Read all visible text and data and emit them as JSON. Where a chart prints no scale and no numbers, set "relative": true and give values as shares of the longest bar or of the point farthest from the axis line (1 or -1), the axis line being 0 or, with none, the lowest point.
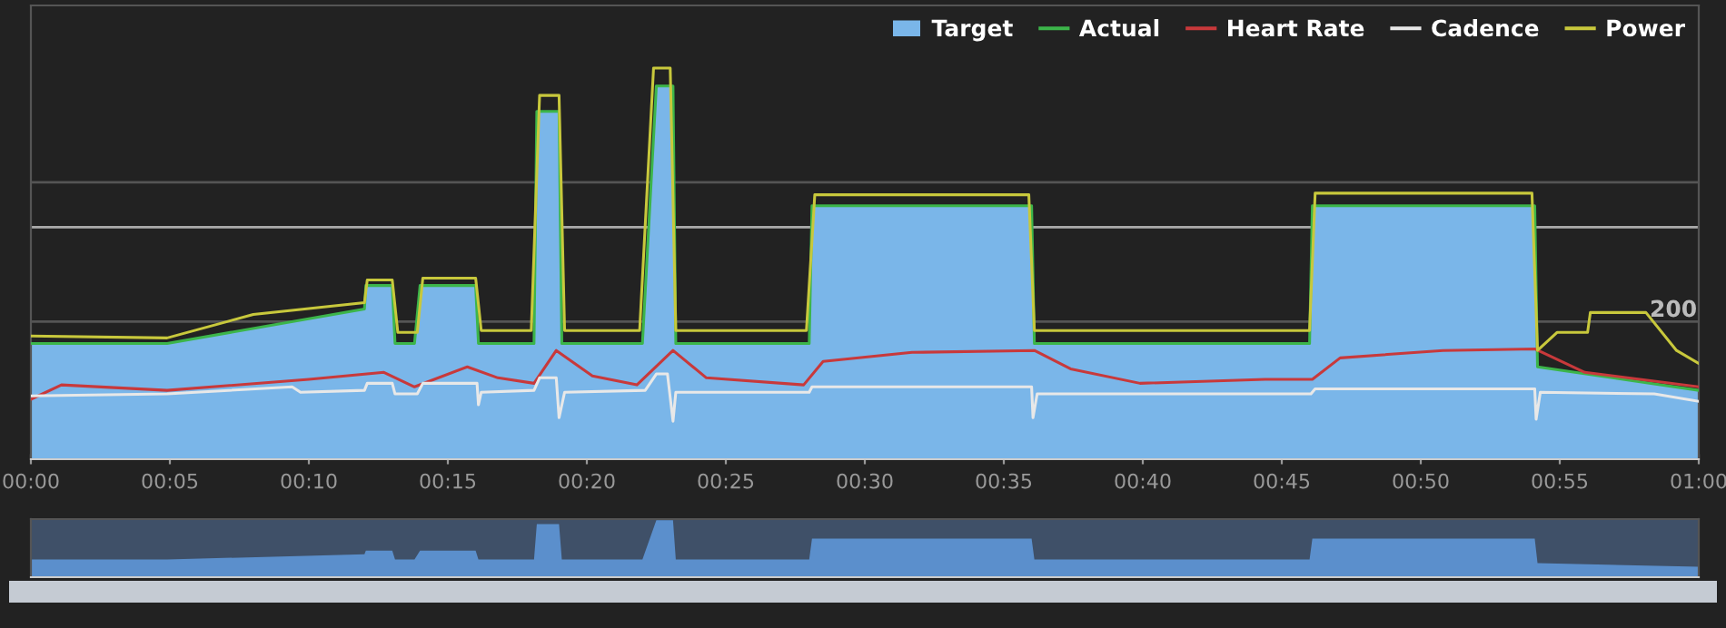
{
  "chart_data": [
    {
      "type": "line",
      "relative": true,
      "xlim": [
        0,
        60
      ],
      "xticks": [
        {
          "value": 0,
          "label": "00:00"
        },
        {
          "value": 5,
          "label": "00:05"
        },
        {
          "value": 10,
          "label": "00:10"
        },
        {
          "value": 15,
          "label": "00:15"
        },
        {
          "value": 20,
          "label": "00:20"
        },
        {
          "value": 25,
          "label": "00:25"
        },
        {
          "value": 30,
          "label": "00:30"
        },
        {
          "value": 35,
          "label": "00:35"
        },
        {
          "value": 40,
          "label": "00:40"
        },
        {
          "value": 45,
          "label": "00:45"
        },
        {
          "value": 50,
          "label": "00:50"
        },
        {
          "value": 55,
          "label": "00:55"
        },
        {
          "value": 60,
          "label": "01:00"
        }
      ],
      "legend": "top right",
      "tick_labels": "x",
      "ref_lines": [
        {
          "axis": "y",
          "value": 0.708,
          "color": "#555555"
        },
        {
          "axis": "y",
          "value": 0.593,
          "color": "#aaaaaa"
        },
        {
          "axis": "y",
          "value": 0.352,
          "color": "#555555"
        }
      ],
      "annotations": [
        "200"
      ],
      "series": [
        {
          "name": "Target",
          "type": "area",
          "color": "#7ab6e9",
          "x": [
            0,
            4.9,
            12.0,
            12.05,
            13.0,
            13.1,
            13.8,
            14.0,
            16.0,
            16.1,
            18.1,
            18.2,
            19.0,
            19.1,
            22.0,
            22.5,
            23.1,
            23.2,
            28.0,
            28.1,
            36.0,
            36.1,
            46.0,
            46.1,
            54.1,
            54.2,
            60
          ],
          "values": [
            0.296,
            0.296,
            0.384,
            0.444,
            0.444,
            0.296,
            0.296,
            0.444,
            0.444,
            0.296,
            0.296,
            0.889,
            0.889,
            0.296,
            0.296,
            0.954,
            0.954,
            0.296,
            0.296,
            0.648,
            0.648,
            0.296,
            0.296,
            0.648,
            0.648,
            0.236,
            0.176
          ]
        },
        {
          "name": "Actual",
          "color": "#3cb54a",
          "x": [
            0,
            4.9,
            12.0,
            12.05,
            13.0,
            13.1,
            13.8,
            14.0,
            16.0,
            16.1,
            18.1,
            18.2,
            19.0,
            19.1,
            22.0,
            22.5,
            23.1,
            23.2,
            28.0,
            28.1,
            36.0,
            36.1,
            46.0,
            46.1,
            54.1,
            54.2,
            60
          ],
          "values": [
            0.296,
            0.296,
            0.384,
            0.444,
            0.444,
            0.296,
            0.296,
            0.444,
            0.444,
            0.296,
            0.296,
            0.889,
            0.889,
            0.296,
            0.296,
            0.954,
            0.954,
            0.296,
            0.296,
            0.648,
            0.648,
            0.296,
            0.296,
            0.648,
            0.648,
            0.236,
            0.176
          ]
        },
        {
          "name": "Heart Rate",
          "color": "#c8393b",
          "x": [
            0,
            1.1,
            4.9,
            10,
            12.7,
            13.8,
            15.7,
            16.8,
            18.1,
            18.9,
            20.2,
            21.8,
            23.1,
            24.3,
            27.8,
            28.5,
            31.7,
            36.1,
            37.4,
            39.9,
            44.4,
            46.1,
            47.1,
            50.8,
            54.1,
            55.9,
            60
          ],
          "values": [
            0.153,
            0.19,
            0.176,
            0.204,
            0.222,
            0.185,
            0.236,
            0.208,
            0.194,
            0.278,
            0.213,
            0.19,
            0.278,
            0.208,
            0.19,
            0.25,
            0.273,
            0.278,
            0.231,
            0.194,
            0.204,
            0.204,
            0.259,
            0.278,
            0.282,
            0.222,
            0.185
          ]
        },
        {
          "name": "Cadence",
          "color": "#e8e8e8",
          "x": [
            0,
            4.9,
            9.4,
            9.7,
            12.0,
            12.1,
            13.0,
            13.1,
            13.9,
            14.1,
            16.05,
            16.1,
            16.2,
            18.1,
            18.3,
            18.9,
            19.0,
            19.2,
            22.1,
            22.5,
            22.9,
            23.1,
            23.2,
            28.0,
            28.1,
            36.0,
            36.05,
            36.2,
            46.05,
            46.2,
            54.1,
            54.15,
            54.3,
            58.4,
            60
          ],
          "values": [
            0.162,
            0.167,
            0.185,
            0.171,
            0.176,
            0.194,
            0.194,
            0.167,
            0.167,
            0.194,
            0.194,
            0.139,
            0.171,
            0.176,
            0.208,
            0.208,
            0.106,
            0.171,
            0.176,
            0.218,
            0.218,
            0.097,
            0.171,
            0.171,
            0.185,
            0.185,
            0.106,
            0.167,
            0.167,
            0.18,
            0.18,
            0.102,
            0.171,
            0.167,
            0.148
          ]
        },
        {
          "name": "Power",
          "color": "#c8c83c",
          "x": [
            0,
            4.9,
            8,
            12.0,
            12.1,
            13.0,
            13.2,
            13.9,
            14.1,
            16.0,
            16.2,
            18.0,
            18.3,
            19.0,
            19.2,
            21.9,
            22.4,
            23.0,
            23.2,
            27.9,
            28.2,
            35.9,
            36.1,
            46.0,
            46.2,
            54.0,
            54.2,
            54.9,
            56.0,
            56.1,
            58.1,
            59.2,
            60
          ],
          "values": [
            0.315,
            0.31,
            0.37,
            0.4,
            0.458,
            0.458,
            0.324,
            0.324,
            0.463,
            0.463,
            0.329,
            0.329,
            0.93,
            0.93,
            0.329,
            0.329,
            1.0,
            1.0,
            0.329,
            0.329,
            0.676,
            0.676,
            0.329,
            0.329,
            0.68,
            0.68,
            0.278,
            0.324,
            0.324,
            0.375,
            0.375,
            0.278,
            0.245
          ]
        }
      ]
    },
    {
      "type": "area",
      "relative": true,
      "xlim": [
        0,
        60
      ],
      "tick_labels": false,
      "series": [
        {
          "color": "#5b8fcc",
          "x": [
            0,
            4.9,
            12.0,
            12.05,
            13.0,
            13.1,
            13.8,
            14.0,
            16.0,
            16.1,
            18.1,
            18.2,
            19.0,
            19.1,
            22.0,
            22.5,
            23.1,
            23.2,
            28.0,
            28.1,
            36.0,
            36.1,
            46.0,
            46.1,
            54.1,
            54.2,
            60
          ],
          "values": [
            0.31,
            0.31,
            0.403,
            0.465,
            0.465,
            0.31,
            0.31,
            0.465,
            0.465,
            0.31,
            0.31,
            0.932,
            0.932,
            0.31,
            0.31,
            1.0,
            1.0,
            0.31,
            0.31,
            0.679,
            0.679,
            0.31,
            0.31,
            0.679,
            0.679,
            0.247,
            0.184
          ]
        }
      ]
    }
  ]
}
